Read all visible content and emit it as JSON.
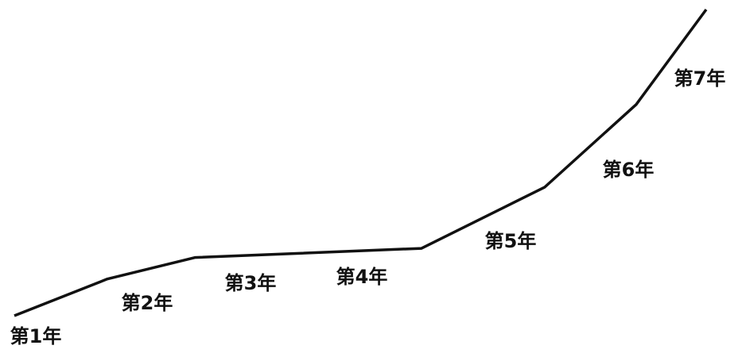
{
  "chart_data": {
    "type": "line",
    "categories": [
      "第1年",
      "第2年",
      "第3年",
      "第4年",
      "第5年",
      "第6年",
      "第7年"
    ],
    "values": [
      0,
      12,
      19,
      22,
      42,
      69,
      100
    ],
    "color": "#111111",
    "ylim": [
      0,
      100
    ]
  }
}
